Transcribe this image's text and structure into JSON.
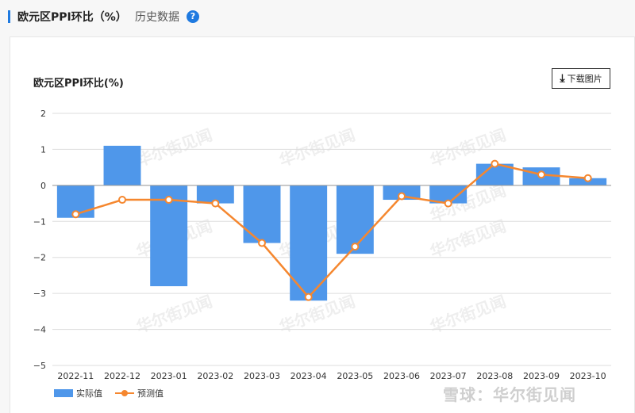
{
  "header": {
    "title": "欧元区PPI环比（%）",
    "history_tab": "历史数据",
    "help_icon": "?"
  },
  "toolbar": {
    "download_label": "下载图片"
  },
  "watermark": {
    "text": "华尔街见闻",
    "footer": "雪球：华尔街见闻"
  },
  "chart_data": {
    "type": "bar",
    "title": "欧元区PPI环比(%)",
    "categories": [
      "2022-11",
      "2022-12",
      "2023-01",
      "2023-02",
      "2023-03",
      "2023-04",
      "2023-05",
      "2023-06",
      "2023-07",
      "2023-08",
      "2023-09",
      "2023-10"
    ],
    "series": [
      {
        "name": "实际值",
        "type": "bar",
        "color": "#4f97ea",
        "values": [
          -0.9,
          1.1,
          -2.8,
          -0.5,
          -1.6,
          -3.2,
          -1.9,
          -0.4,
          -0.5,
          0.6,
          0.5,
          0.2
        ]
      },
      {
        "name": "预测值",
        "type": "line",
        "color": "#f5872f",
        "values": [
          -0.8,
          -0.4,
          -0.4,
          -0.5,
          -1.6,
          -3.1,
          -1.7,
          -0.3,
          -0.5,
          0.6,
          0.3,
          0.2
        ]
      }
    ],
    "ylim": [
      -5,
      2
    ],
    "yticks": [
      "2",
      "1",
      "0",
      "−1",
      "−2",
      "−3",
      "−4",
      "−5"
    ],
    "grid": true,
    "legend_position": "bottom-left"
  }
}
